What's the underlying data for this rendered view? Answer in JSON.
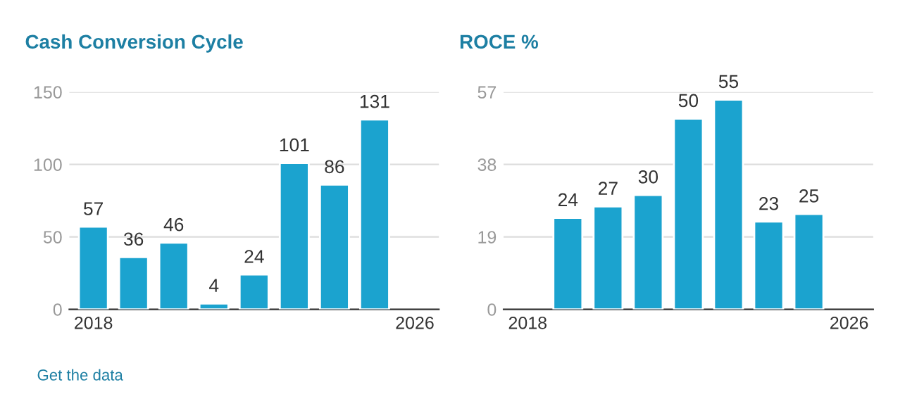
{
  "chart_data": [
    {
      "type": "bar",
      "title": "Cash Conversion Cycle",
      "categories": [
        "2018",
        null,
        null,
        null,
        null,
        null,
        null,
        null,
        "2026"
      ],
      "values": [
        57,
        36,
        46,
        4,
        24,
        101,
        86,
        131,
        null
      ],
      "color": "#1ba3cf",
      "data_labels": true,
      "ylim": [
        0,
        150
      ],
      "yticks": [
        0,
        50,
        100,
        150
      ],
      "grid": "y",
      "annotations": [
        "Get the data"
      ]
    },
    {
      "type": "bar",
      "title": "ROCE %",
      "categories": [
        "2018",
        null,
        null,
        null,
        null,
        null,
        null,
        null,
        "2026"
      ],
      "values": [
        null,
        24,
        27,
        30,
        50,
        55,
        23,
        25,
        null
      ],
      "color": "#1ba3cf",
      "data_labels": true,
      "ylim": [
        0,
        57
      ],
      "yticks": [
        0,
        19,
        38,
        57
      ],
      "grid": "y"
    }
  ]
}
